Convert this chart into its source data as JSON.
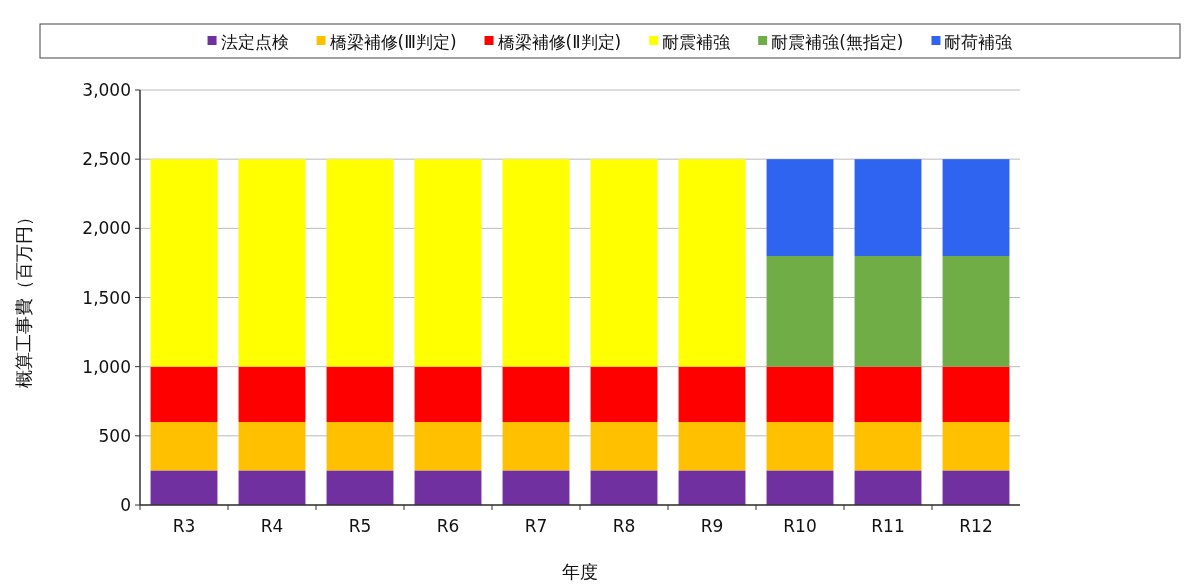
{
  "chart_data": {
    "type": "bar",
    "stacked": true,
    "xlabel": "年度",
    "ylabel": "概算工事費（百万円）",
    "categories": [
      "R3",
      "R4",
      "R5",
      "R6",
      "R7",
      "R8",
      "R9",
      "R10",
      "R11",
      "R12"
    ],
    "series": [
      {
        "name": "法定点検",
        "color": "#7030a0",
        "values": [
          250,
          250,
          250,
          250,
          250,
          250,
          250,
          250,
          250,
          250
        ]
      },
      {
        "name": "橋梁補修(Ⅲ判定)",
        "color": "#ffc000",
        "values": [
          350,
          350,
          350,
          350,
          350,
          350,
          350,
          350,
          350,
          350
        ]
      },
      {
        "name": "橋梁補修(Ⅱ判定)",
        "color": "#ff0000",
        "values": [
          400,
          400,
          400,
          400,
          400,
          400,
          400,
          400,
          400,
          400
        ]
      },
      {
        "name": "耐震補強",
        "color": "#ffff00",
        "values": [
          1500,
          1500,
          1500,
          1500,
          1500,
          1500,
          1500,
          null,
          null,
          null
        ]
      },
      {
        "name": "耐震補強(無指定)",
        "color": "#70ad47",
        "values": [
          null,
          null,
          null,
          null,
          null,
          null,
          null,
          800,
          800,
          800
        ]
      },
      {
        "name": "耐荷補強",
        "color": "#2e64f0",
        "values": [
          null,
          null,
          null,
          null,
          null,
          null,
          null,
          700,
          700,
          700
        ]
      }
    ],
    "ylim": [
      0,
      3000
    ],
    "yticks": [
      0,
      500,
      {
        "value": 1000,
        "label": "1,000"
      },
      {
        "value": 1500,
        "label": "1,500"
      },
      {
        "value": 2000,
        "label": "2,000"
      },
      {
        "value": 2500,
        "label": "2,500"
      },
      {
        "value": 3000,
        "label": "3,000"
      }
    ],
    "grid": "y",
    "legend": "top"
  }
}
